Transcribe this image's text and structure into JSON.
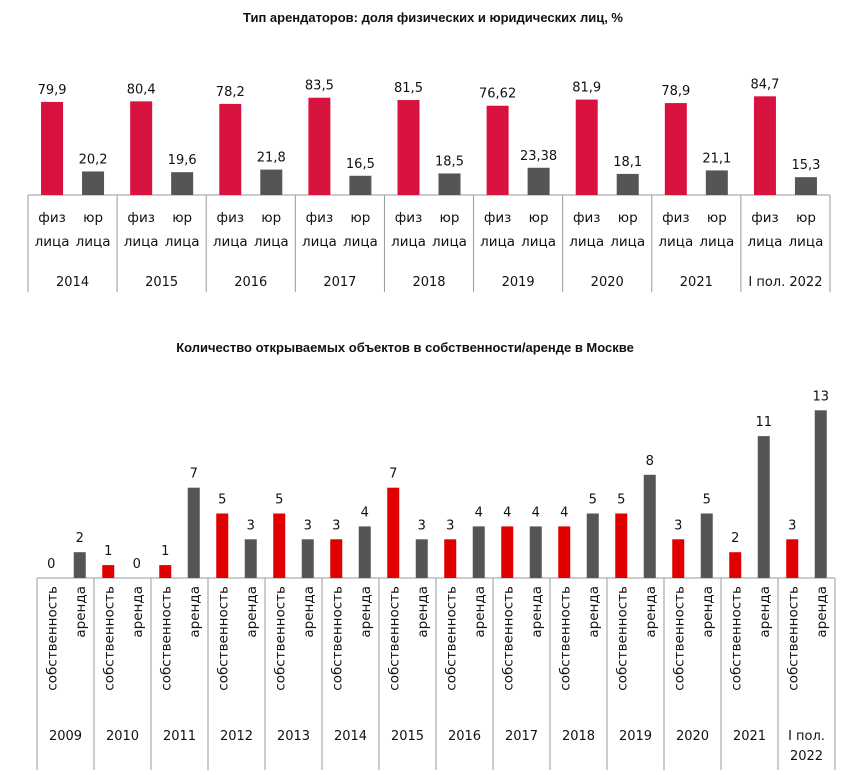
{
  "chart_data": [
    {
      "type": "bar",
      "title": "Тип арендаторов: доля физических и юридических лиц, %",
      "groups": [
        "2014",
        "2015",
        "2016",
        "2017",
        "2018",
        "2019",
        "2020",
        "2021",
        "I пол. 2022"
      ],
      "subcategories": [
        [
          "физ",
          "лица"
        ],
        [
          "юр",
          "лица"
        ]
      ],
      "series": [
        {
          "values": [
            79.9,
            80.4,
            78.2,
            83.5,
            81.5,
            76.62,
            81.9,
            78.9,
            84.7
          ],
          "labels": [
            "79,9",
            "80,4",
            "78,2",
            "83,5",
            "81,5",
            "76,62",
            "81,9",
            "78,9",
            "84,7"
          ],
          "color": "#d8123f"
        },
        {
          "values": [
            20.2,
            19.6,
            21.8,
            16.5,
            18.5,
            23.38,
            18.1,
            21.1,
            15.3
          ],
          "labels": [
            "20,2",
            "19,6",
            "21,8",
            "16,5",
            "18,5",
            "23,38",
            "18,1",
            "21,1",
            "15,3"
          ],
          "color": "#555555"
        }
      ],
      "ylim": [
        0,
        100
      ],
      "grid": false
    },
    {
      "type": "bar",
      "title": "Количество открываемых объектов в собственности/аренде в Москве",
      "groups": [
        "2009",
        "2010",
        "2011",
        "2012",
        "2013",
        "2014",
        "2015",
        "2016",
        "2017",
        "2018",
        "2019",
        "2020",
        "2021",
        "I пол. 2022"
      ],
      "subcategories": [
        "собственность",
        "аренда"
      ],
      "series": [
        {
          "values": [
            0,
            1,
            1,
            5,
            5,
            3,
            7,
            3,
            4,
            4,
            5,
            3,
            2,
            3
          ],
          "color": "#e00000"
        },
        {
          "values": [
            2,
            0,
            7,
            3,
            3,
            4,
            3,
            4,
            4,
            5,
            8,
            5,
            11,
            13
          ],
          "color": "#555555"
        }
      ],
      "ylim": [
        0,
        13
      ],
      "grid": false
    }
  ]
}
